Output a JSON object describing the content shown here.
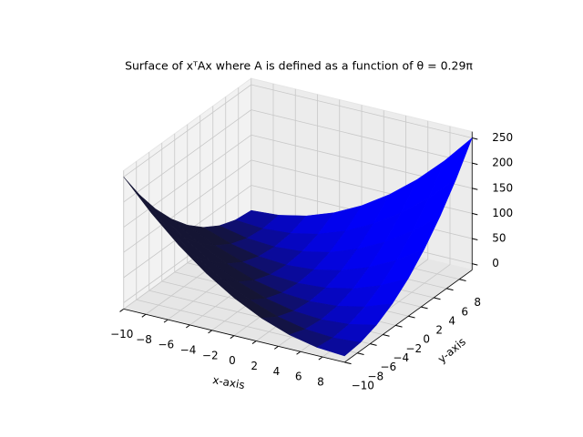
{
  "chart_data": {
    "type": "surface",
    "title": "Surface of xᵀAx where A is defined as a function of θ = 0.29π",
    "x_label": "x-axis",
    "y_label": "y-axis",
    "color": "#0000ff",
    "x": [
      -10,
      -7.5,
      -5,
      -2.5,
      0,
      2.5,
      5,
      7.5,
      10
    ],
    "y": [
      -10,
      -7.5,
      -5,
      -2.5,
      0,
      2.5,
      5,
      7.5,
      10
    ],
    "z": [
      [
        250,
        191.4,
        140.6,
        97.7,
        62.5,
        35.2,
        15.6,
        3.9,
        0
      ],
      [
        191.4,
        140.6,
        97.7,
        62.5,
        35.2,
        15.6,
        3.9,
        0,
        3.9
      ],
      [
        140.6,
        97.7,
        62.5,
        35.2,
        15.6,
        3.9,
        0,
        3.9,
        15.6
      ],
      [
        97.7,
        62.5,
        35.2,
        15.6,
        3.9,
        0,
        3.9,
        15.6,
        35.2
      ],
      [
        62.5,
        35.2,
        15.6,
        3.9,
        0,
        3.9,
        15.6,
        35.2,
        62.5
      ],
      [
        35.2,
        15.6,
        3.9,
        0,
        3.9,
        15.6,
        35.2,
        62.5,
        97.7
      ],
      [
        15.6,
        3.9,
        0,
        3.9,
        15.6,
        35.2,
        62.5,
        97.7,
        140.6
      ],
      [
        3.9,
        0,
        3.9,
        15.6,
        35.2,
        62.5,
        97.7,
        140.6,
        191.4
      ],
      [
        0,
        3.9,
        15.6,
        35.2,
        62.5,
        97.7,
        140.6,
        191.4,
        250
      ]
    ],
    "xlim": [
      -10,
      10
    ],
    "ylim": [
      -10,
      10
    ],
    "zlim": [
      -12.5,
      262.5
    ],
    "xticks": [
      {
        "value": -10,
        "label": "−10"
      },
      {
        "value": -8,
        "label": "−8"
      },
      {
        "value": -6,
        "label": "−6"
      },
      {
        "value": -4,
        "label": "−4"
      },
      {
        "value": -2,
        "label": "−2"
      },
      0,
      2,
      4,
      6,
      8
    ],
    "yticks": [
      {
        "value": -10,
        "label": "−10"
      },
      {
        "value": -8,
        "label": "−8"
      },
      {
        "value": -6,
        "label": "−6"
      },
      {
        "value": -4,
        "label": "−4"
      },
      {
        "value": -2,
        "label": "−2"
      },
      0,
      2,
      4,
      6,
      8
    ],
    "zticks": [
      0,
      50,
      100,
      150,
      200,
      250
    ],
    "grid": true
  }
}
